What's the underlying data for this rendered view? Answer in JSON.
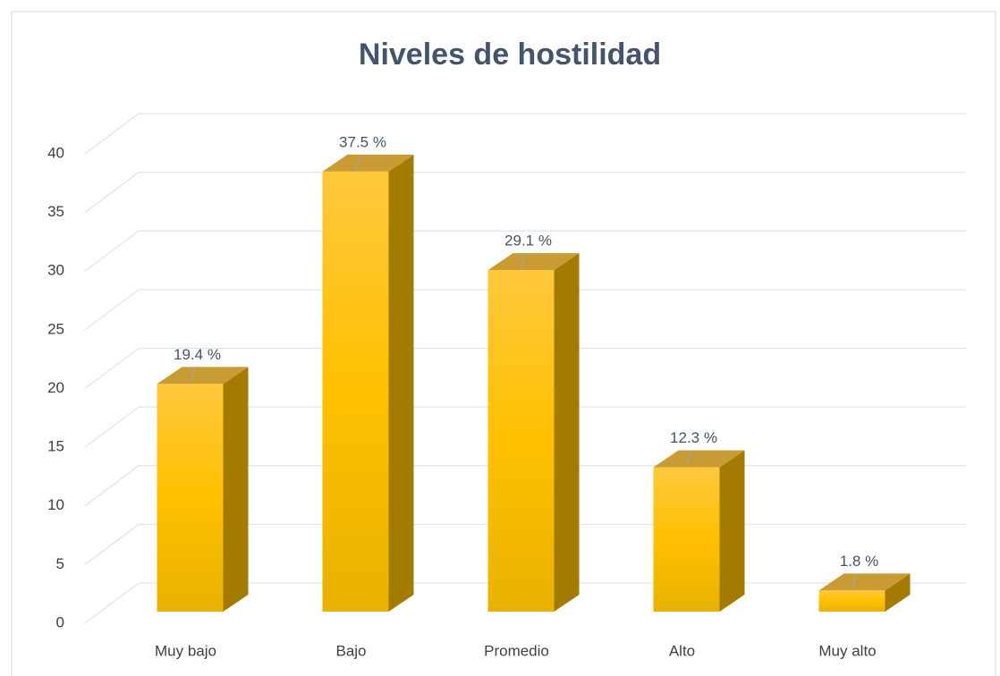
{
  "chart_data": {
    "type": "bar3d",
    "title": "Niveles de hostilidad",
    "categories": [
      "Muy bajo",
      "Bajo",
      "Promedio",
      "Alto",
      "Muy alto"
    ],
    "values": [
      19.4,
      37.5,
      29.1,
      12.3,
      1.8
    ],
    "value_labels": [
      "19.4 %",
      "37.5 %",
      "29.1 %",
      "12.3 %",
      "1.8 %"
    ],
    "color": "#ffc000",
    "ylim": [
      0,
      40
    ],
    "yticks": [
      0,
      5,
      10,
      15,
      20,
      25,
      30,
      35,
      40
    ],
    "grid": true
  }
}
